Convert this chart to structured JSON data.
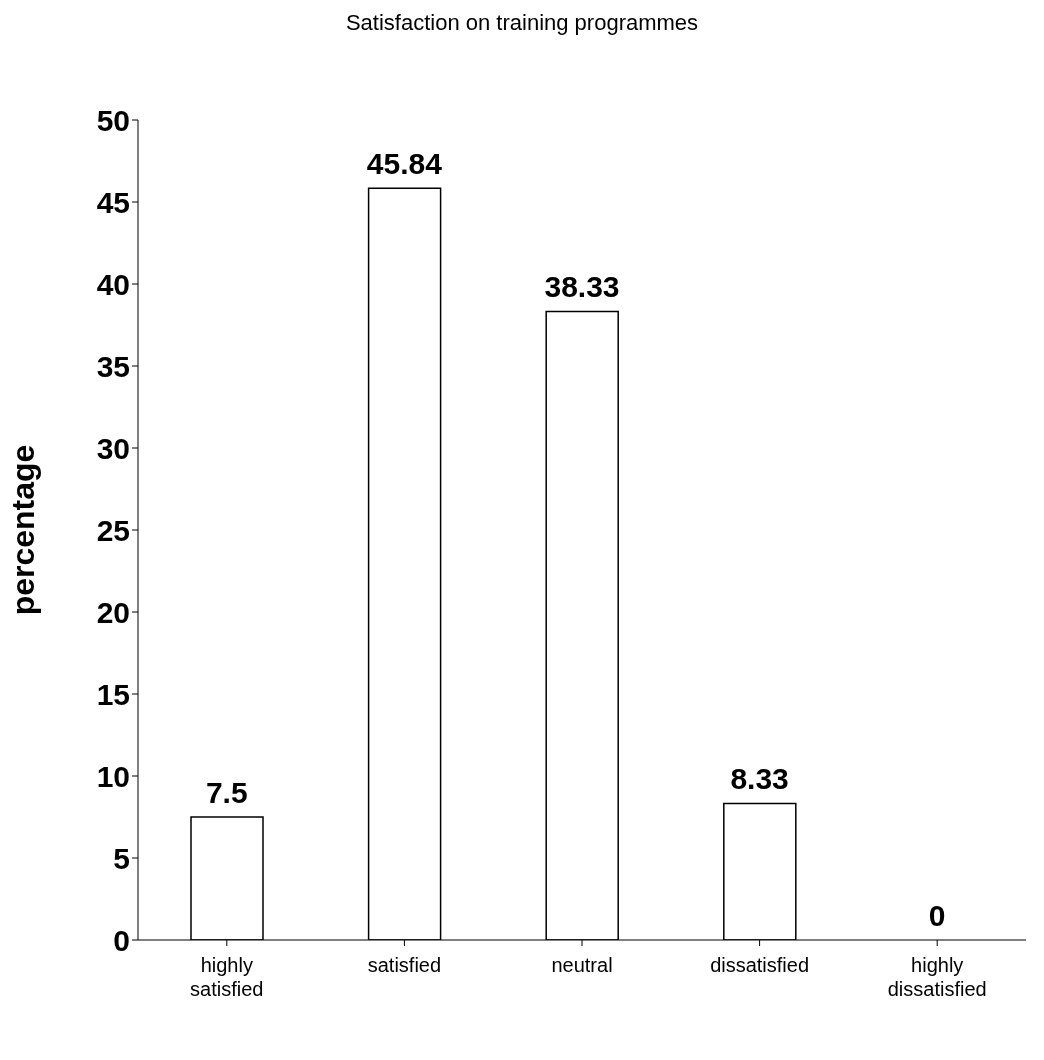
{
  "chart_data": {
    "type": "bar",
    "title": "Satisfaction on training programmes",
    "ylabel": "percentage",
    "categories": [
      "highly satisfied",
      "satisfied",
      "neutral",
      "dissatisfied",
      "highly dissatisfied"
    ],
    "values": [
      7.5,
      45.84,
      38.33,
      8.33,
      0
    ],
    "color": "#ffffff",
    "ylim": [
      0,
      50
    ],
    "yticks": [
      0,
      5,
      10,
      15,
      20,
      25,
      30,
      35,
      40,
      45,
      50
    ],
    "grid": false,
    "legend": false,
    "data_labels": true
  }
}
